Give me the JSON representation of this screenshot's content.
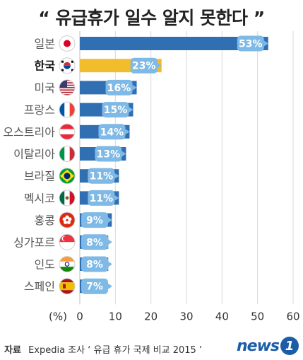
{
  "title": "“ 유급휴가 일수 알지 못한다 ”",
  "chart_data": {
    "type": "bar",
    "orientation": "horizontal",
    "categories": [
      "일본",
      "한국",
      "미국",
      "프랑스",
      "오스트리아",
      "이탈리아",
      "브라질",
      "멕시코",
      "홍콩",
      "싱가포르",
      "인도",
      "스페인"
    ],
    "values": [
      53,
      23,
      16,
      15,
      14,
      13,
      11,
      11,
      9,
      8,
      8,
      7
    ],
    "value_suffix": "%",
    "highlight_category": "한국",
    "xlabel": "(%)",
    "xlim": [
      0,
      60
    ],
    "xticks": [
      0,
      10,
      20,
      30,
      40,
      50,
      60
    ],
    "grid": "vertical",
    "colors": {
      "bar": "#2f6fb2",
      "highlight": "#f2bd2c",
      "label_box": "#7fb9e6"
    },
    "flag_icons": [
      "japan-flag-icon",
      "korea-flag-icon",
      "usa-flag-icon",
      "france-flag-icon",
      "austria-flag-icon",
      "italy-flag-icon",
      "brazil-flag-icon",
      "mexico-flag-icon",
      "hongkong-flag-icon",
      "singapore-flag-icon",
      "india-flag-icon",
      "spain-flag-icon"
    ]
  },
  "footer": {
    "source_label": "자료",
    "source_text": "Expedia 조사 ‘ 유급 휴가 국제 비교 2015 ’"
  },
  "logo": {
    "text": "news",
    "mark": "1"
  }
}
